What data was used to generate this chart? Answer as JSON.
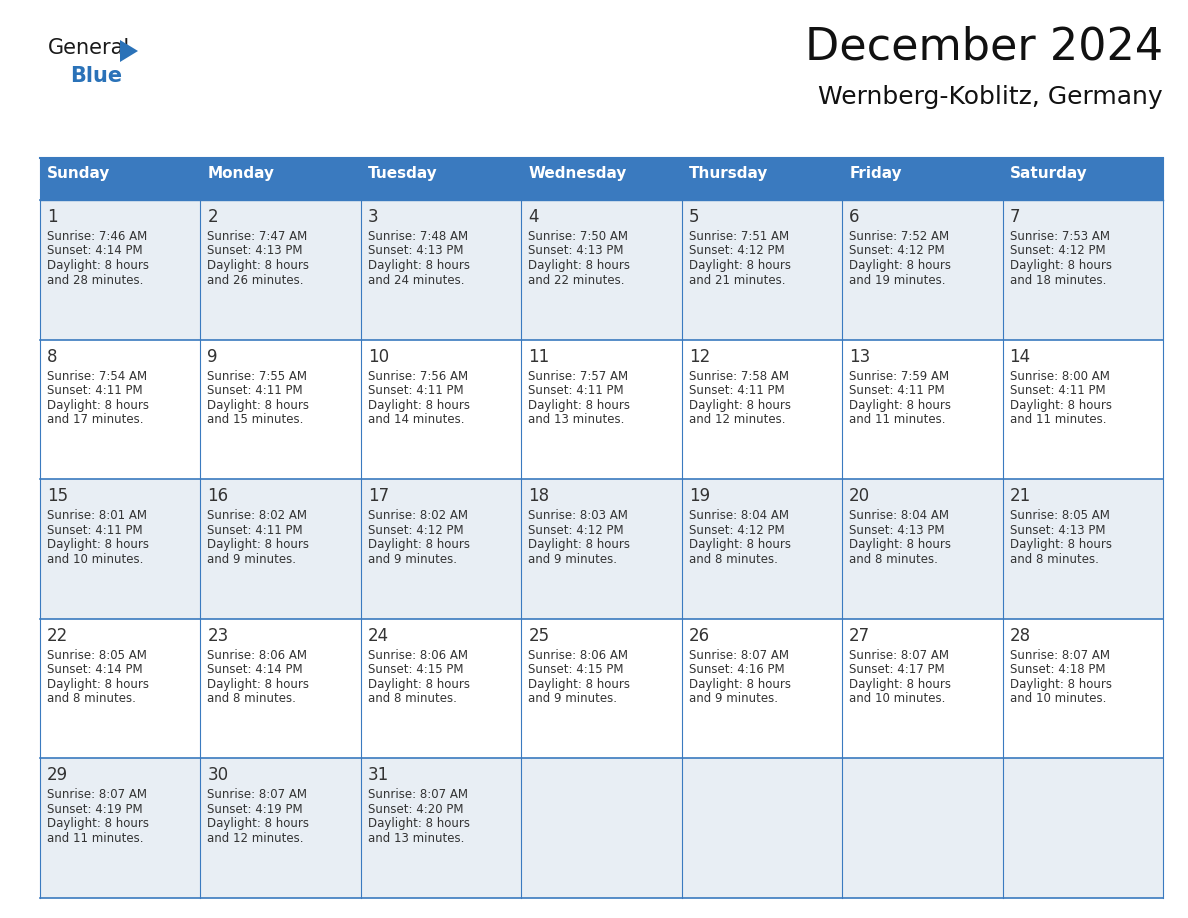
{
  "title": "December 2024",
  "subtitle": "Wernberg-Koblitz, Germany",
  "header_color": "#3a7abf",
  "header_text_color": "#ffffff",
  "cell_bg_even": "#e8eef4",
  "cell_bg_odd": "#ffffff",
  "text_color": "#333333",
  "day_names": [
    "Sunday",
    "Monday",
    "Tuesday",
    "Wednesday",
    "Thursday",
    "Friday",
    "Saturday"
  ],
  "days": [
    {
      "day": 1,
      "col": 0,
      "row": 0,
      "sunrise": "7:46 AM",
      "sunset": "4:14 PM",
      "daylight_line1": "Daylight: 8 hours",
      "daylight_line2": "and 28 minutes."
    },
    {
      "day": 2,
      "col": 1,
      "row": 0,
      "sunrise": "7:47 AM",
      "sunset": "4:13 PM",
      "daylight_line1": "Daylight: 8 hours",
      "daylight_line2": "and 26 minutes."
    },
    {
      "day": 3,
      "col": 2,
      "row": 0,
      "sunrise": "7:48 AM",
      "sunset": "4:13 PM",
      "daylight_line1": "Daylight: 8 hours",
      "daylight_line2": "and 24 minutes."
    },
    {
      "day": 4,
      "col": 3,
      "row": 0,
      "sunrise": "7:50 AM",
      "sunset": "4:13 PM",
      "daylight_line1": "Daylight: 8 hours",
      "daylight_line2": "and 22 minutes."
    },
    {
      "day": 5,
      "col": 4,
      "row": 0,
      "sunrise": "7:51 AM",
      "sunset": "4:12 PM",
      "daylight_line1": "Daylight: 8 hours",
      "daylight_line2": "and 21 minutes."
    },
    {
      "day": 6,
      "col": 5,
      "row": 0,
      "sunrise": "7:52 AM",
      "sunset": "4:12 PM",
      "daylight_line1": "Daylight: 8 hours",
      "daylight_line2": "and 19 minutes."
    },
    {
      "day": 7,
      "col": 6,
      "row": 0,
      "sunrise": "7:53 AM",
      "sunset": "4:12 PM",
      "daylight_line1": "Daylight: 8 hours",
      "daylight_line2": "and 18 minutes."
    },
    {
      "day": 8,
      "col": 0,
      "row": 1,
      "sunrise": "7:54 AM",
      "sunset": "4:11 PM",
      "daylight_line1": "Daylight: 8 hours",
      "daylight_line2": "and 17 minutes."
    },
    {
      "day": 9,
      "col": 1,
      "row": 1,
      "sunrise": "7:55 AM",
      "sunset": "4:11 PM",
      "daylight_line1": "Daylight: 8 hours",
      "daylight_line2": "and 15 minutes."
    },
    {
      "day": 10,
      "col": 2,
      "row": 1,
      "sunrise": "7:56 AM",
      "sunset": "4:11 PM",
      "daylight_line1": "Daylight: 8 hours",
      "daylight_line2": "and 14 minutes."
    },
    {
      "day": 11,
      "col": 3,
      "row": 1,
      "sunrise": "7:57 AM",
      "sunset": "4:11 PM",
      "daylight_line1": "Daylight: 8 hours",
      "daylight_line2": "and 13 minutes."
    },
    {
      "day": 12,
      "col": 4,
      "row": 1,
      "sunrise": "7:58 AM",
      "sunset": "4:11 PM",
      "daylight_line1": "Daylight: 8 hours",
      "daylight_line2": "and 12 minutes."
    },
    {
      "day": 13,
      "col": 5,
      "row": 1,
      "sunrise": "7:59 AM",
      "sunset": "4:11 PM",
      "daylight_line1": "Daylight: 8 hours",
      "daylight_line2": "and 11 minutes."
    },
    {
      "day": 14,
      "col": 6,
      "row": 1,
      "sunrise": "8:00 AM",
      "sunset": "4:11 PM",
      "daylight_line1": "Daylight: 8 hours",
      "daylight_line2": "and 11 minutes."
    },
    {
      "day": 15,
      "col": 0,
      "row": 2,
      "sunrise": "8:01 AM",
      "sunset": "4:11 PM",
      "daylight_line1": "Daylight: 8 hours",
      "daylight_line2": "and 10 minutes."
    },
    {
      "day": 16,
      "col": 1,
      "row": 2,
      "sunrise": "8:02 AM",
      "sunset": "4:11 PM",
      "daylight_line1": "Daylight: 8 hours",
      "daylight_line2": "and 9 minutes."
    },
    {
      "day": 17,
      "col": 2,
      "row": 2,
      "sunrise": "8:02 AM",
      "sunset": "4:12 PM",
      "daylight_line1": "Daylight: 8 hours",
      "daylight_line2": "and 9 minutes."
    },
    {
      "day": 18,
      "col": 3,
      "row": 2,
      "sunrise": "8:03 AM",
      "sunset": "4:12 PM",
      "daylight_line1": "Daylight: 8 hours",
      "daylight_line2": "and 9 minutes."
    },
    {
      "day": 19,
      "col": 4,
      "row": 2,
      "sunrise": "8:04 AM",
      "sunset": "4:12 PM",
      "daylight_line1": "Daylight: 8 hours",
      "daylight_line2": "and 8 minutes."
    },
    {
      "day": 20,
      "col": 5,
      "row": 2,
      "sunrise": "8:04 AM",
      "sunset": "4:13 PM",
      "daylight_line1": "Daylight: 8 hours",
      "daylight_line2": "and 8 minutes."
    },
    {
      "day": 21,
      "col": 6,
      "row": 2,
      "sunrise": "8:05 AM",
      "sunset": "4:13 PM",
      "daylight_line1": "Daylight: 8 hours",
      "daylight_line2": "and 8 minutes."
    },
    {
      "day": 22,
      "col": 0,
      "row": 3,
      "sunrise": "8:05 AM",
      "sunset": "4:14 PM",
      "daylight_line1": "Daylight: 8 hours",
      "daylight_line2": "and 8 minutes."
    },
    {
      "day": 23,
      "col": 1,
      "row": 3,
      "sunrise": "8:06 AM",
      "sunset": "4:14 PM",
      "daylight_line1": "Daylight: 8 hours",
      "daylight_line2": "and 8 minutes."
    },
    {
      "day": 24,
      "col": 2,
      "row": 3,
      "sunrise": "8:06 AM",
      "sunset": "4:15 PM",
      "daylight_line1": "Daylight: 8 hours",
      "daylight_line2": "and 8 minutes."
    },
    {
      "day": 25,
      "col": 3,
      "row": 3,
      "sunrise": "8:06 AM",
      "sunset": "4:15 PM",
      "daylight_line1": "Daylight: 8 hours",
      "daylight_line2": "and 9 minutes."
    },
    {
      "day": 26,
      "col": 4,
      "row": 3,
      "sunrise": "8:07 AM",
      "sunset": "4:16 PM",
      "daylight_line1": "Daylight: 8 hours",
      "daylight_line2": "and 9 minutes."
    },
    {
      "day": 27,
      "col": 5,
      "row": 3,
      "sunrise": "8:07 AM",
      "sunset": "4:17 PM",
      "daylight_line1": "Daylight: 8 hours",
      "daylight_line2": "and 10 minutes."
    },
    {
      "day": 28,
      "col": 6,
      "row": 3,
      "sunrise": "8:07 AM",
      "sunset": "4:18 PM",
      "daylight_line1": "Daylight: 8 hours",
      "daylight_line2": "and 10 minutes."
    },
    {
      "day": 29,
      "col": 0,
      "row": 4,
      "sunrise": "8:07 AM",
      "sunset": "4:19 PM",
      "daylight_line1": "Daylight: 8 hours",
      "daylight_line2": "and 11 minutes."
    },
    {
      "day": 30,
      "col": 1,
      "row": 4,
      "sunrise": "8:07 AM",
      "sunset": "4:19 PM",
      "daylight_line1": "Daylight: 8 hours",
      "daylight_line2": "and 12 minutes."
    },
    {
      "day": 31,
      "col": 2,
      "row": 4,
      "sunrise": "8:07 AM",
      "sunset": "4:20 PM",
      "daylight_line1": "Daylight: 8 hours",
      "daylight_line2": "and 13 minutes."
    }
  ],
  "n_rows": 5,
  "n_cols": 7,
  "logo_general_color": "#1a1a1a",
  "logo_blue_color": "#2a72b8",
  "title_fontsize": 32,
  "subtitle_fontsize": 18,
  "dayname_fontsize": 11,
  "daynum_fontsize": 12,
  "detail_fontsize": 8.5
}
